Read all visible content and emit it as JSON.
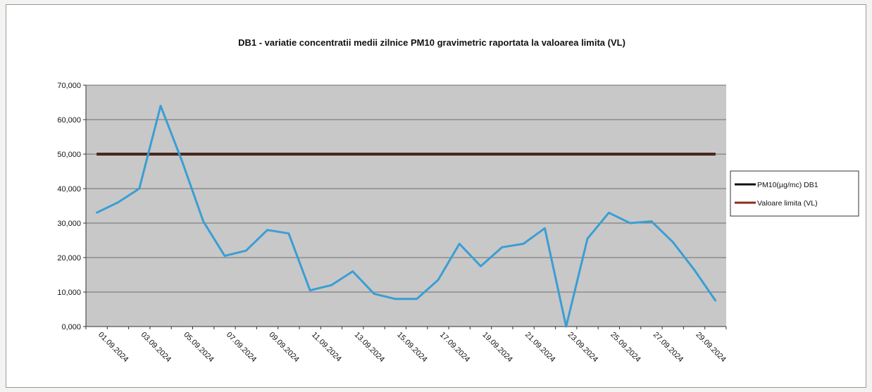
{
  "chart_data": {
    "type": "line",
    "title": "DB1 - variatie concentratii medii zilnice  PM10 gravimetric raportata la valoarea limita (VL)",
    "xlabel": "",
    "ylabel": "",
    "ylim": [
      0,
      70
    ],
    "y_ticks": [
      "0,000",
      "10,000",
      "20,000",
      "30,000",
      "40,000",
      "50,000",
      "60,000",
      "70,000"
    ],
    "x": [
      "01.09.2024",
      "02.09.2024",
      "03.09.2024",
      "04.09.2024",
      "05.09.2024",
      "06.09.2024",
      "07.09.2024",
      "08.09.2024",
      "09.09.2024",
      "10.09.2024",
      "11.09.2024",
      "12.09.2024",
      "13.09.2024",
      "14.09.2024",
      "15.09.2024",
      "16.09.2024",
      "17.09.2024",
      "18.09.2024",
      "19.09.2024",
      "20.09.2024",
      "21.09.2024",
      "22.09.2024",
      "23.09.2024",
      "24.09.2024",
      "25.09.2024",
      "26.09.2024",
      "27.09.2024",
      "28.09.2024",
      "29.09.2024",
      "30.09.2024"
    ],
    "x_tick_labels": [
      "01.09.2024",
      "03.09.2024",
      "05.09.2024",
      "07.09.2024",
      "09.09.2024",
      "11.09.2024",
      "13.09.2024",
      "15.09.2024",
      "17.09.2024",
      "19.09.2024",
      "21.09.2024",
      "23.09.2024",
      "25.09.2024",
      "27.09.2024",
      "29.09.2024"
    ],
    "series": [
      {
        "name": "PM10(µg/mc) DB1",
        "legend_color": "#111111",
        "color": "#3a9ed4",
        "values": [
          33,
          36,
          40,
          64,
          48,
          30.5,
          20.5,
          22,
          28,
          27,
          10.5,
          12,
          16,
          9.5,
          8,
          8,
          13.5,
          24,
          17.5,
          23,
          24,
          28.5,
          0,
          25.5,
          33,
          30,
          30.5,
          24.5,
          16.5,
          7.5
        ]
      },
      {
        "name": "Valoare limita (VL)",
        "color": "#8b2d1a",
        "values": [
          50,
          50,
          50,
          50,
          50,
          50,
          50,
          50,
          50,
          50,
          50,
          50,
          50,
          50,
          50,
          50,
          50,
          50,
          50,
          50,
          50,
          50,
          50,
          50,
          50,
          50,
          50,
          50,
          50,
          50
        ]
      }
    ],
    "plot_background": "#c8c8c8",
    "grid": true,
    "legend_position": "right"
  }
}
